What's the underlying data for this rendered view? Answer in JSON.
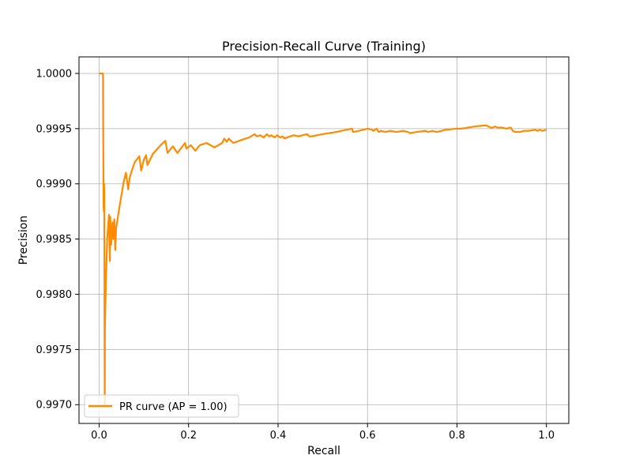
{
  "chart_data": {
    "type": "line",
    "title": "Precision-Recall Curve  (Training)",
    "xlabel": "Recall",
    "ylabel": "Precision",
    "xlim": [
      -0.045,
      1.05
    ],
    "ylim": [
      0.99683,
      1.00015
    ],
    "xticks": [
      0.0,
      0.2,
      0.4,
      0.6,
      0.8,
      1.0
    ],
    "xtick_labels": [
      "0.0",
      "0.2",
      "0.4",
      "0.6",
      "0.8",
      "1.0"
    ],
    "yticks": [
      0.997,
      0.9975,
      0.998,
      0.9985,
      0.999,
      0.9995,
      1.0
    ],
    "ytick_labels": [
      "0.9970",
      "0.9975",
      "0.9980",
      "0.9985",
      "0.9990",
      "0.9995",
      "1.0000"
    ],
    "grid": true,
    "legend_position": "lower-left",
    "series": [
      {
        "name": "PR curve (AP = 1.00)",
        "color": "#ff8c00",
        "x": [
          0.0,
          0.0085,
          0.0088,
          0.009,
          0.01,
          0.0105,
          0.011,
          0.0115,
          0.0125,
          0.013,
          0.015,
          0.017,
          0.018,
          0.022,
          0.024,
          0.025,
          0.027,
          0.03,
          0.032,
          0.034,
          0.036,
          0.038,
          0.04,
          0.045,
          0.05,
          0.055,
          0.06,
          0.065,
          0.068,
          0.073,
          0.08,
          0.09,
          0.094,
          0.1,
          0.105,
          0.108,
          0.12,
          0.135,
          0.148,
          0.153,
          0.165,
          0.175,
          0.192,
          0.195,
          0.205,
          0.215,
          0.225,
          0.24,
          0.258,
          0.275,
          0.28,
          0.285,
          0.29,
          0.3,
          0.32,
          0.335,
          0.348,
          0.352,
          0.36,
          0.368,
          0.375,
          0.38,
          0.385,
          0.392,
          0.398,
          0.405,
          0.41,
          0.415,
          0.42,
          0.435,
          0.445,
          0.455,
          0.465,
          0.47,
          0.475,
          0.5,
          0.53,
          0.565,
          0.568,
          0.58,
          0.6,
          0.61,
          0.613,
          0.62,
          0.625,
          0.63,
          0.64,
          0.65,
          0.665,
          0.68,
          0.69,
          0.695,
          0.71,
          0.73,
          0.735,
          0.745,
          0.755,
          0.775,
          0.8,
          0.81,
          0.84,
          0.865,
          0.87,
          0.875,
          0.88,
          0.885,
          0.89,
          0.9,
          0.91,
          0.92,
          0.925,
          0.93,
          0.94,
          0.95,
          0.96,
          0.975,
          0.98,
          0.985,
          0.99,
          1.0
        ],
        "y": [
          1.0,
          1.0,
          0.99995,
          0.9996,
          0.9988,
          0.99875,
          0.999,
          0.9989,
          0.997,
          0.9977,
          0.9981,
          0.99835,
          0.9985,
          0.99872,
          0.9983,
          0.9987,
          0.99845,
          0.99865,
          0.9985,
          0.99868,
          0.9984,
          0.9986,
          0.99865,
          0.99878,
          0.9989,
          0.99902,
          0.9991,
          0.99895,
          0.99905,
          0.99912,
          0.9992,
          0.99925,
          0.99912,
          0.99922,
          0.99926,
          0.99917,
          0.99927,
          0.99934,
          0.99939,
          0.99928,
          0.99934,
          0.99928,
          0.99937,
          0.99932,
          0.99935,
          0.9993,
          0.99935,
          0.99937,
          0.99933,
          0.99937,
          0.99941,
          0.99938,
          0.99941,
          0.99937,
          0.9994,
          0.99942,
          0.99945,
          0.99943,
          0.99944,
          0.99942,
          0.99945,
          0.99943,
          0.99944,
          0.99942,
          0.99944,
          0.99942,
          0.99943,
          0.99941,
          0.99942,
          0.99944,
          0.99943,
          0.99944,
          0.99945,
          0.99943,
          0.99943,
          0.99945,
          0.99947,
          0.9995,
          0.99947,
          0.99948,
          0.9995,
          0.99949,
          0.99948,
          0.9995,
          0.99947,
          0.99948,
          0.99947,
          0.99948,
          0.99947,
          0.99948,
          0.99947,
          0.99946,
          0.99947,
          0.99948,
          0.99947,
          0.99948,
          0.99947,
          0.99949,
          0.9995,
          0.9995,
          0.99952,
          0.99953,
          0.99952,
          0.99951,
          0.99951,
          0.99952,
          0.99951,
          0.99951,
          0.9995,
          0.99951,
          0.99948,
          0.99947,
          0.99947,
          0.99948,
          0.99948,
          0.99949,
          0.99948,
          0.99949,
          0.99948,
          0.99949
        ]
      }
    ]
  }
}
